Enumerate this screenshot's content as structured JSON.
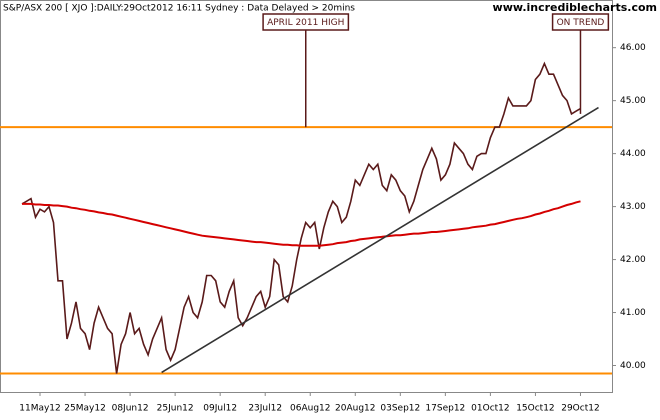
{
  "chart_data": {
    "type": "line",
    "title": "S&P/ASX 200 [ XJO ]:DAILY:29Oct2012 16:11 Sydney : Data Delayed > 20mins",
    "source": "www.incrediblecharts.com",
    "categories": [
      null,
      null,
      null,
      null,
      "11May12",
      null,
      null,
      null,
      null,
      null,
      null,
      null,
      null,
      null,
      "25May12",
      null,
      null,
      null,
      null,
      null,
      null,
      null,
      null,
      null,
      "08Jun12",
      null,
      null,
      null,
      null,
      null,
      null,
      null,
      null,
      null,
      "25Jun12",
      null,
      null,
      null,
      null,
      null,
      null,
      null,
      null,
      null,
      "09Jul12",
      null,
      null,
      null,
      null,
      null,
      null,
      null,
      null,
      null,
      "23Jul12",
      null,
      null,
      null,
      null,
      null,
      null,
      null,
      null,
      null,
      "06Aug12",
      null,
      null,
      null,
      null,
      null,
      null,
      null,
      null,
      null,
      "20Aug12",
      null,
      null,
      null,
      null,
      null,
      null,
      null,
      null,
      null,
      "03Sep12",
      null,
      null,
      null,
      null,
      null,
      null,
      null,
      null,
      null,
      "17Sep12",
      null,
      null,
      null,
      null,
      null,
      null,
      null,
      null,
      null,
      "01Oct12",
      null,
      null,
      null,
      null,
      null,
      null,
      null,
      null,
      null,
      "15Oct12",
      null,
      null,
      null,
      null,
      null,
      null,
      null,
      null,
      null,
      "29Oct12"
    ],
    "series": [
      {
        "color": "#5a1a1a",
        "values": [
          43.05,
          43.1,
          43.15,
          42.8,
          42.95,
          42.9,
          43.0,
          42.7,
          41.6,
          41.6,
          40.5,
          40.8,
          41.2,
          40.7,
          40.6,
          40.3,
          40.8,
          41.1,
          40.9,
          40.7,
          40.6,
          39.85,
          40.4,
          40.6,
          41.0,
          40.6,
          40.7,
          40.4,
          40.2,
          40.5,
          40.7,
          40.9,
          40.3,
          40.1,
          40.3,
          40.7,
          41.1,
          41.3,
          41.0,
          40.9,
          41.2,
          41.7,
          41.7,
          41.6,
          41.2,
          41.1,
          41.4,
          41.6,
          40.9,
          40.75,
          40.9,
          41.1,
          41.3,
          41.4,
          41.1,
          41.3,
          42.0,
          41.9,
          41.3,
          41.2,
          41.5,
          42.0,
          42.4,
          42.7,
          42.6,
          42.7,
          42.2,
          42.6,
          42.9,
          43.1,
          43.0,
          42.7,
          42.8,
          43.1,
          43.5,
          43.4,
          43.6,
          43.8,
          43.7,
          43.8,
          43.4,
          43.3,
          43.6,
          43.5,
          43.3,
          43.2,
          42.9,
          43.1,
          43.4,
          43.7,
          43.9,
          44.1,
          43.9,
          43.5,
          43.6,
          43.8,
          44.2,
          44.1,
          44.0,
          43.8,
          43.7,
          43.95,
          44.0,
          44.0,
          44.3,
          44.5,
          44.5,
          44.75,
          45.05,
          44.9,
          44.9,
          44.9,
          44.9,
          45.0,
          45.4,
          45.5,
          45.7,
          45.5,
          45.5,
          45.3,
          45.1,
          45.0,
          44.75,
          44.8,
          44.85
        ]
      },
      {
        "color": "#d40000",
        "values": [
          43.05,
          43.05,
          43.05,
          43.04,
          43.04,
          43.03,
          43.03,
          43.02,
          43.02,
          43.01,
          43.0,
          42.98,
          42.97,
          42.95,
          42.94,
          42.92,
          42.91,
          42.89,
          42.88,
          42.86,
          42.85,
          42.83,
          42.81,
          42.79,
          42.77,
          42.75,
          42.73,
          42.71,
          42.69,
          42.67,
          42.65,
          42.63,
          42.61,
          42.59,
          42.57,
          42.55,
          42.53,
          42.51,
          42.49,
          42.47,
          42.45,
          42.44,
          42.43,
          42.42,
          42.41,
          42.4,
          42.39,
          42.38,
          42.37,
          42.36,
          42.35,
          42.34,
          42.33,
          42.33,
          42.32,
          42.31,
          42.3,
          42.29,
          42.28,
          42.28,
          42.27,
          42.27,
          42.26,
          42.26,
          42.26,
          42.26,
          42.26,
          42.27,
          42.28,
          42.29,
          42.31,
          42.32,
          42.33,
          42.35,
          42.36,
          42.38,
          42.39,
          42.4,
          42.41,
          42.42,
          42.43,
          42.44,
          42.45,
          42.46,
          42.46,
          42.47,
          42.48,
          42.49,
          42.49,
          42.5,
          42.51,
          42.52,
          42.52,
          42.53,
          42.54,
          42.55,
          42.56,
          42.57,
          42.58,
          42.59,
          42.61,
          42.62,
          42.63,
          42.64,
          42.66,
          42.67,
          42.69,
          42.71,
          42.73,
          42.75,
          42.77,
          42.78,
          42.8,
          42.82,
          42.85,
          42.87,
          42.9,
          42.92,
          42.95,
          42.97,
          43.0,
          43.03,
          43.05,
          43.08,
          43.1
        ]
      }
    ],
    "hlines": [
      {
        "value": 44.5,
        "color": "#ff8c00"
      },
      {
        "value": 39.85,
        "color": "#ff8c00"
      }
    ],
    "trendline": {
      "x": [
        31,
        128
      ],
      "values": [
        39.87,
        44.87
      ],
      "color": "#333333"
    },
    "annotations": [
      {
        "text": "APRIL 2011 HIGH",
        "x": 63,
        "value": 44.5
      },
      {
        "text": "ON TREND",
        "x": 124,
        "value": 44.75
      }
    ],
    "ylim": [
      39.5,
      46.9
    ],
    "yticks": [
      {
        "value": 40,
        "label": "40.00"
      },
      {
        "value": 41,
        "label": "41.00"
      },
      {
        "value": 42,
        "label": "42.00"
      },
      {
        "value": 43,
        "label": "43.00"
      },
      {
        "value": 44,
        "label": "44.00"
      },
      {
        "value": 45,
        "label": "45.00"
      },
      {
        "value": 46,
        "label": "46.00"
      }
    ]
  }
}
